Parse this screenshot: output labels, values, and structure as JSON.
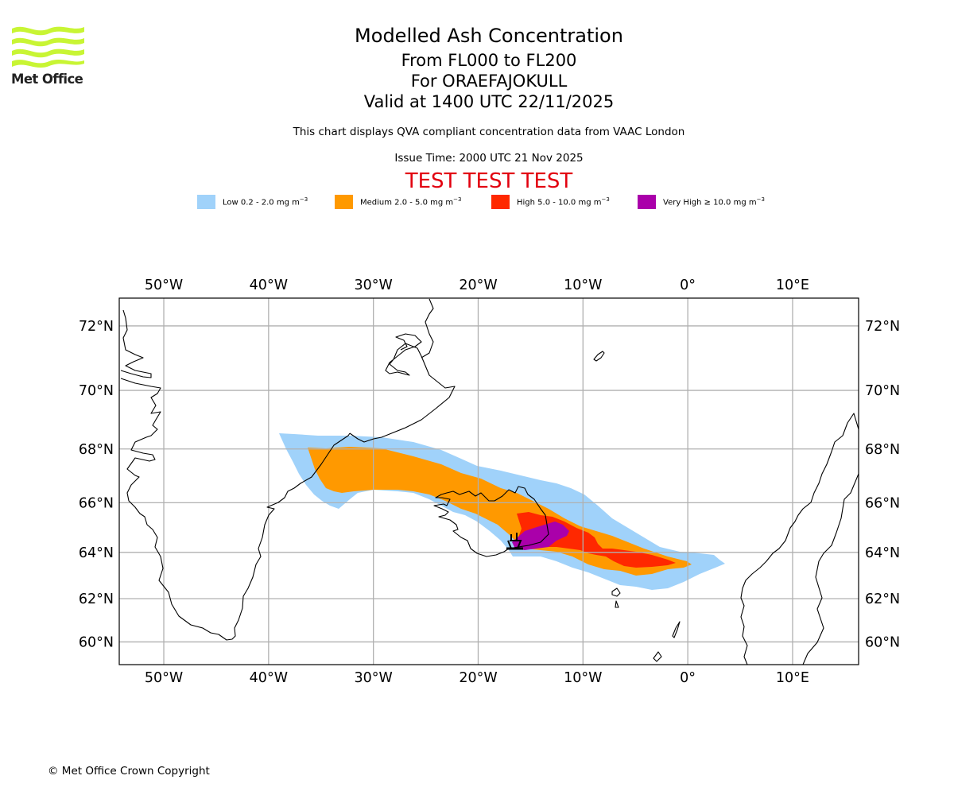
{
  "logo": {
    "name": "met-office-logo",
    "text": "Met Office",
    "color": "#c8f534"
  },
  "header": {
    "title": "Modelled Ash Concentration",
    "levels": "From FL000 to FL200",
    "volcano": "For ORAEFAJOKULL",
    "valid": "Valid at 1400 UTC 22/11/2025",
    "description": "This chart displays QVA compliant concentration data from VAAC London",
    "issue_time": "Issue Time: 2000 UTC 21 Nov 2025",
    "test_banner": "TEST TEST TEST",
    "test_color": "#e2000f"
  },
  "legend": [
    {
      "label": "Low 0.2 - 2.0 mg m",
      "unit_exp": "−3",
      "color": "#a0d2fa",
      "level": "low"
    },
    {
      "label": "Medium 2.0 - 5.0 mg m",
      "unit_exp": "−3",
      "color": "#ff9900",
      "level": "medium"
    },
    {
      "label": "High 5.0 - 10.0 mg m",
      "unit_exp": "−3",
      "color": "#ff2800",
      "level": "high"
    },
    {
      "label": "Very High  ≥  10.0 mg m",
      "unit_exp": "−3",
      "color": "#aa00aa",
      "level": "very-high"
    }
  ],
  "map": {
    "projection": "mercator",
    "lon_range": [
      -54.25,
      16.3
    ],
    "lat_range": [
      58.9,
      72.8
    ],
    "lon_ticks": [
      {
        "value": -50,
        "label": "50°W"
      },
      {
        "value": -40,
        "label": "40°W"
      },
      {
        "value": -30,
        "label": "30°W"
      },
      {
        "value": -20,
        "label": "20°W"
      },
      {
        "value": -10,
        "label": "10°W"
      },
      {
        "value": 0,
        "label": "0°"
      },
      {
        "value": 10,
        "label": "10°E"
      }
    ],
    "lat_ticks": [
      {
        "value": 72,
        "label": "72°N"
      },
      {
        "value": 70,
        "label": "70°N"
      },
      {
        "value": 68,
        "label": "68°N"
      },
      {
        "value": 66,
        "label": "66°N"
      },
      {
        "value": 64,
        "label": "64°N"
      },
      {
        "value": 62,
        "label": "62°N"
      },
      {
        "value": 60,
        "label": "60°N"
      }
    ],
    "gridlines": true,
    "volcano_marker": {
      "name": "Oraefajokull",
      "lon": -16.6,
      "lat": 64.0
    }
  },
  "footer": {
    "copyright": "© Met Office Crown Copyright"
  }
}
